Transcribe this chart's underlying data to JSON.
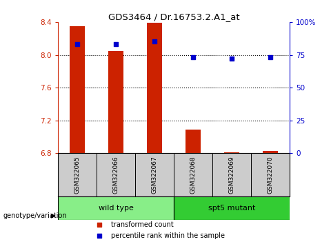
{
  "title": "GDS3464 / Dr.16753.2.A1_at",
  "samples": [
    "GSM322065",
    "GSM322066",
    "GSM322067",
    "GSM322068",
    "GSM322069",
    "GSM322070"
  ],
  "transformed_count": [
    8.35,
    8.05,
    8.39,
    7.09,
    6.81,
    6.83
  ],
  "percentile_rank": [
    83,
    83,
    85,
    73,
    72,
    73
  ],
  "ylim_left": [
    6.8,
    8.4
  ],
  "ylim_right": [
    0,
    100
  ],
  "yticks_left": [
    6.8,
    7.2,
    7.6,
    8.0,
    8.4
  ],
  "yticks_right": [
    0,
    25,
    50,
    75,
    100
  ],
  "ytick_labels_right": [
    "0",
    "25",
    "50",
    "75",
    "100%"
  ],
  "bar_color": "#cc2200",
  "dot_color": "#0000cc",
  "bar_bottom": 6.8,
  "groups": [
    {
      "label": "wild type",
      "indices": [
        0,
        1,
        2
      ],
      "color": "#88ee88"
    },
    {
      "label": "spt5 mutant",
      "indices": [
        3,
        4,
        5
      ],
      "color": "#33cc33"
    }
  ],
  "group_label": "genotype/variation",
  "legend_items": [
    {
      "label": "transformed count",
      "color": "#cc2200",
      "marker": "s"
    },
    {
      "label": "percentile rank within the sample",
      "color": "#0000cc",
      "marker": "s"
    }
  ],
  "background_color": "#ffffff",
  "tick_color_left": "#cc2200",
  "tick_color_right": "#0000cc",
  "label_box_color": "#cccccc",
  "bar_width": 0.4
}
